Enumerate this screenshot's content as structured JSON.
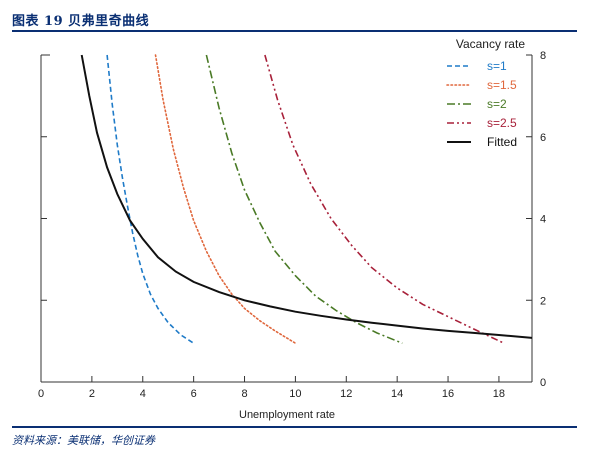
{
  "header": {
    "title": "图表 19 贝弗里奇曲线",
    "source": "资料来源：美联储，华创证券"
  },
  "chart_data": {
    "type": "line",
    "xlabel": "Unemployment rate",
    "ylabel": "Vacancy rate",
    "xlim": [
      0,
      19.3
    ],
    "ylim": [
      0,
      8
    ],
    "xticks": [
      0,
      2,
      4,
      6,
      8,
      10,
      12,
      14,
      16,
      18
    ],
    "yticks": [
      0,
      2,
      4,
      6,
      8
    ],
    "y_axis_side": "right",
    "grid": false,
    "legend_position": "top-right",
    "series": [
      {
        "name": "s=1",
        "color": "#1f7bc8",
        "style": "dashed",
        "x": [
          2.6,
          2.8,
          3.0,
          3.2,
          3.4,
          3.6,
          3.8,
          4.0,
          4.3,
          4.6,
          5.0,
          5.5,
          6.0
        ],
        "y": [
          8.0,
          6.8,
          5.8,
          5.0,
          4.3,
          3.65,
          3.1,
          2.65,
          2.15,
          1.8,
          1.45,
          1.15,
          0.95
        ]
      },
      {
        "name": "s=1.5",
        "color": "#e0673c",
        "style": "dotted",
        "x": [
          4.5,
          4.8,
          5.2,
          5.6,
          6.0,
          6.5,
          7.0,
          7.5,
          8.0,
          8.6,
          9.2,
          10.0
        ],
        "y": [
          8.0,
          6.9,
          5.7,
          4.75,
          3.95,
          3.2,
          2.6,
          2.15,
          1.8,
          1.5,
          1.25,
          0.95
        ]
      },
      {
        "name": "s=2",
        "color": "#4a7a26",
        "style": "dashdot",
        "x": [
          6.5,
          7.0,
          7.5,
          8.0,
          8.6,
          9.2,
          10.0,
          10.8,
          11.6,
          12.4,
          13.2,
          14.2
        ],
        "y": [
          8.0,
          6.7,
          5.6,
          4.7,
          3.9,
          3.2,
          2.6,
          2.1,
          1.75,
          1.45,
          1.2,
          0.95
        ]
      },
      {
        "name": "s=2.5",
        "color": "#a8213a",
        "style": "dashdotdot",
        "x": [
          8.8,
          9.3,
          9.9,
          10.6,
          11.4,
          12.2,
          13.0,
          14.0,
          15.0,
          16.0,
          17.0,
          18.2
        ],
        "y": [
          8.0,
          6.9,
          5.8,
          4.85,
          4.0,
          3.35,
          2.8,
          2.3,
          1.9,
          1.6,
          1.3,
          0.95
        ]
      },
      {
        "name": "Fitted",
        "color": "#111111",
        "style": "solid",
        "x": [
          1.6,
          1.9,
          2.2,
          2.6,
          3.0,
          3.5,
          4.0,
          4.6,
          5.3,
          6.0,
          7.0,
          8.0,
          9.0,
          10.0,
          11.0,
          12.0,
          13.0,
          14.0,
          15.0,
          16.0,
          17.0,
          18.0,
          19.3
        ],
        "y": [
          8.0,
          7.0,
          6.1,
          5.25,
          4.6,
          3.95,
          3.5,
          3.05,
          2.7,
          2.45,
          2.2,
          2.0,
          1.85,
          1.72,
          1.62,
          1.53,
          1.45,
          1.38,
          1.31,
          1.25,
          1.2,
          1.15,
          1.08
        ]
      }
    ]
  }
}
